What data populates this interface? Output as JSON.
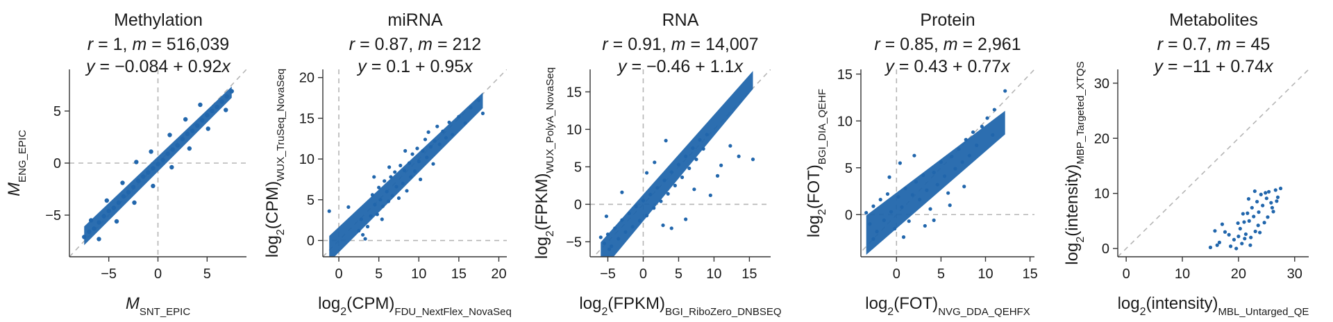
{
  "chart_data": [
    {
      "type": "scatter",
      "title": "Methylation",
      "stats": {
        "r_label": "r",
        "r_value": "1",
        "m_label": "m",
        "m_value": "516,039"
      },
      "fit_text": {
        "lhs": "y",
        "eq": " = −0.084 + 0.92",
        "var": "x"
      },
      "fit": {
        "intercept": -0.084,
        "slope": 0.92
      },
      "xlabel": {
        "main": "M",
        "sub": "SNT_EPIC"
      },
      "ylabel": {
        "main": "M",
        "sub": "ENG_EPIC"
      },
      "xlim": [
        -9,
        9
      ],
      "ylim": [
        -9,
        9
      ],
      "xticks": [
        -5,
        0,
        5
      ],
      "yticks": [
        -5,
        0,
        5
      ],
      "tick_labels_x": [
        "−5",
        "0",
        "5"
      ],
      "tick_labels_y": [
        "−5",
        "0",
        "5"
      ],
      "identity_line": true,
      "zero_lines": true,
      "color": "#2166ac",
      "points": [
        [
          -7.5,
          -7.1
        ],
        [
          -7.0,
          -6.6
        ],
        [
          -6.5,
          -6.3
        ],
        [
          -6.0,
          -5.7
        ],
        [
          -5.5,
          -5.1
        ],
        [
          -5.0,
          -4.6
        ],
        [
          -4.5,
          -4.3
        ],
        [
          -4.0,
          -3.8
        ],
        [
          -3.5,
          -3.2
        ],
        [
          -3.0,
          -2.8
        ],
        [
          -2.5,
          -2.3
        ],
        [
          -2.0,
          -1.7
        ],
        [
          -1.5,
          -1.3
        ],
        [
          -1.0,
          -0.9
        ],
        [
          -0.5,
          -0.5
        ],
        [
          0.0,
          -0.1
        ],
        [
          0.5,
          0.3
        ],
        [
          1.0,
          0.9
        ],
        [
          1.5,
          1.3
        ],
        [
          2.0,
          1.7
        ],
        [
          2.5,
          2.3
        ],
        [
          3.0,
          2.8
        ],
        [
          3.5,
          3.1
        ],
        [
          4.0,
          3.6
        ],
        [
          4.5,
          4.1
        ],
        [
          5.0,
          4.6
        ],
        [
          5.5,
          5.0
        ],
        [
          6.0,
          5.4
        ],
        [
          6.5,
          5.9
        ],
        [
          7.0,
          6.4
        ],
        [
          7.5,
          6.9
        ],
        [
          -6.8,
          -5.5
        ],
        [
          -5.2,
          -3.6
        ],
        [
          -3.6,
          -1.9
        ],
        [
          -2.2,
          0.1
        ],
        [
          -0.7,
          1.1
        ],
        [
          1.2,
          2.7
        ],
        [
          2.8,
          4.2
        ],
        [
          4.3,
          5.6
        ],
        [
          -6.0,
          -7.3
        ],
        [
          -4.2,
          -5.6
        ],
        [
          -2.4,
          -3.8
        ],
        [
          -0.5,
          -2.2
        ],
        [
          1.4,
          -0.4
        ],
        [
          3.2,
          1.4
        ],
        [
          5.1,
          3.3
        ],
        [
          6.9,
          5.1
        ]
      ]
    },
    {
      "type": "scatter",
      "title": "miRNA",
      "stats": {
        "r_label": "r",
        "r_value": "0.87",
        "m_label": "m",
        "m_value": "212"
      },
      "fit_text": {
        "lhs": "y",
        "eq": " = 0.1 + 0.95",
        "var": "x"
      },
      "fit": {
        "intercept": 0.1,
        "slope": 0.95
      },
      "xlabel": {
        "main": "log2(CPM)",
        "sub": "FDU_NextFlex_NovaSeq"
      },
      "ylabel": {
        "main": "log2(CPM)",
        "sub": "WUX_TruSeq_NovaSeq"
      },
      "xlim": [
        -2,
        21
      ],
      "ylim": [
        -2,
        21
      ],
      "xticks": [
        0,
        5,
        10,
        15,
        20
      ],
      "yticks": [
        0,
        5,
        10,
        15,
        20
      ],
      "tick_labels_x": [
        "0",
        "5",
        "10",
        "15",
        "20"
      ],
      "tick_labels_y": [
        "0",
        "5",
        "10",
        "15",
        "20"
      ],
      "identity_line": true,
      "zero_lines": true,
      "color": "#2166ac",
      "points": [
        [
          -1.2,
          3.6
        ],
        [
          1.2,
          4.1
        ],
        [
          2.5,
          1.2
        ],
        [
          2.8,
          2.6
        ],
        [
          3.0,
          0.7
        ],
        [
          3.3,
          0.2
        ],
        [
          3.6,
          1.7
        ],
        [
          4.0,
          3.0
        ],
        [
          4.2,
          5.6
        ],
        [
          4.5,
          4.4
        ],
        [
          4.8,
          3.2
        ],
        [
          5.0,
          6.5
        ],
        [
          5.2,
          5.0
        ],
        [
          5.5,
          4.2
        ],
        [
          5.7,
          7.3
        ],
        [
          6.0,
          6.0
        ],
        [
          6.2,
          4.8
        ],
        [
          6.5,
          7.8
        ],
        [
          6.7,
          5.5
        ],
        [
          7.0,
          8.4
        ],
        [
          7.2,
          6.6
        ],
        [
          7.5,
          5.2
        ],
        [
          7.7,
          9.2
        ],
        [
          8.0,
          7.0
        ],
        [
          8.2,
          8.6
        ],
        [
          8.5,
          6.1
        ],
        [
          8.8,
          9.5
        ],
        [
          9.0,
          7.8
        ],
        [
          9.2,
          10.6
        ],
        [
          9.5,
          8.5
        ],
        [
          9.8,
          11.3
        ],
        [
          10.0,
          9.7
        ],
        [
          10.2,
          7.5
        ],
        [
          10.5,
          11.0
        ],
        [
          10.8,
          12.4
        ],
        [
          11.0,
          10.2
        ],
        [
          11.2,
          13.3
        ],
        [
          11.5,
          11.5
        ],
        [
          11.8,
          9.4
        ],
        [
          12.0,
          12.2
        ],
        [
          12.3,
          14.0
        ],
        [
          12.6,
          11.8
        ],
        [
          13.0,
          13.4
        ],
        [
          13.4,
          12.6
        ],
        [
          13.8,
          14.5
        ],
        [
          14.2,
          13.0
        ],
        [
          15.0,
          15.2
        ],
        [
          15.8,
          14.4
        ],
        [
          16.5,
          16.3
        ],
        [
          17.5,
          17.2
        ],
        [
          18.0,
          15.6
        ],
        [
          6.3,
          9.0
        ],
        [
          8.3,
          11.0
        ],
        [
          5.4,
          2.6
        ],
        [
          4.4,
          7.8
        ]
      ]
    },
    {
      "type": "scatter",
      "title": "RNA",
      "stats": {
        "r_label": "r",
        "r_value": "0.91",
        "m_label": "m",
        "m_value": "14,007"
      },
      "fit_text": {
        "lhs": "y",
        "eq": " = −0.46 + 1.1",
        "var": "x"
      },
      "fit": {
        "intercept": -0.46,
        "slope": 1.1
      },
      "xlabel": {
        "main": "log2(FPKM)",
        "sub": "BGI_RiboZero_DNBSEQ"
      },
      "ylabel": {
        "main": "log2(FPKM)",
        "sub": "WUX_PolyA_NovaSeq"
      },
      "xlim": [
        -7.5,
        18
      ],
      "ylim": [
        -7,
        18
      ],
      "xticks": [
        -5,
        0,
        5,
        10,
        15
      ],
      "yticks": [
        -5,
        0,
        5,
        10,
        15
      ],
      "tick_labels_x": [
        "−5",
        "0",
        "5",
        "10",
        "15"
      ],
      "tick_labels_y": [
        "−5",
        "0",
        "5",
        "10",
        "15"
      ],
      "identity_line": true,
      "zero_lines": true,
      "color": "#2166ac",
      "points": [
        [
          -5.5,
          -5.2
        ],
        [
          -5.0,
          -4.0
        ],
        [
          -4.5,
          -5.6
        ],
        [
          -4.0,
          -3.2
        ],
        [
          -3.5,
          -4.6
        ],
        [
          -3.0,
          -2.1
        ],
        [
          -2.5,
          -3.7
        ],
        [
          -2.0,
          -1.2
        ],
        [
          -1.5,
          -3.0
        ],
        [
          -1.0,
          -0.3
        ],
        [
          -0.5,
          -2.2
        ],
        [
          0.0,
          0.5
        ],
        [
          0.5,
          -1.5
        ],
        [
          1.0,
          1.3
        ],
        [
          1.5,
          -0.5
        ],
        [
          2.0,
          2.2
        ],
        [
          2.5,
          0.4
        ],
        [
          3.0,
          3.2
        ],
        [
          3.5,
          1.4
        ],
        [
          4.0,
          4.3
        ],
        [
          4.5,
          2.5
        ],
        [
          5.0,
          5.3
        ],
        [
          5.5,
          3.6
        ],
        [
          6.0,
          6.4
        ],
        [
          6.5,
          4.8
        ],
        [
          7.0,
          7.5
        ],
        [
          7.5,
          6.0
        ],
        [
          8.0,
          8.6
        ],
        [
          8.5,
          7.4
        ],
        [
          9.0,
          9.3
        ],
        [
          -6.0,
          -4.4
        ],
        [
          -4.8,
          -6.0
        ],
        [
          2.8,
          -2.8
        ],
        [
          4.0,
          -3.2
        ],
        [
          6.0,
          -2.0
        ],
        [
          9.5,
          1.2
        ],
        [
          10.5,
          3.8
        ],
        [
          13.5,
          6.4
        ],
        [
          15.5,
          6.0
        ],
        [
          11.0,
          5.2
        ],
        [
          -5.2,
          -1.6
        ],
        [
          -3.0,
          1.6
        ],
        [
          0.5,
          4.2
        ],
        [
          3.2,
          8.5
        ],
        [
          1.6,
          5.6
        ],
        [
          7.2,
          2.0
        ],
        [
          12.3,
          7.8
        ]
      ]
    },
    {
      "type": "scatter",
      "title": "Protein",
      "stats": {
        "r_label": "r",
        "r_value": "0.85",
        "m_label": "m",
        "m_value": "2,961"
      },
      "fit_text": {
        "lhs": "y",
        "eq": " = 0.43 + 0.77",
        "var": "x"
      },
      "fit": {
        "intercept": 0.43,
        "slope": 0.77
      },
      "xlabel": {
        "main": "log2(FOT)",
        "sub": "NVG_DDA_QEHFX"
      },
      "ylabel": {
        "main": "log2(FOT)",
        "sub": "BGI_DIA_QEHF"
      },
      "xlim": [
        -4,
        15.5
      ],
      "ylim": [
        -4.5,
        15.5
      ],
      "xticks": [
        0,
        5,
        10,
        15
      ],
      "yticks": [
        0,
        5,
        10,
        15
      ],
      "tick_labels_x": [
        "0",
        "5",
        "10",
        "15"
      ],
      "tick_labels_y": [
        "0",
        "5",
        "10",
        "15"
      ],
      "identity_line": true,
      "zero_lines": true,
      "color": "#2166ac",
      "points": [
        [
          -3.0,
          -1.0
        ],
        [
          -2.6,
          0.9
        ],
        [
          -2.2,
          -1.8
        ],
        [
          -1.8,
          1.6
        ],
        [
          -1.4,
          -0.6
        ],
        [
          -1.0,
          2.2
        ],
        [
          -0.6,
          0.3
        ],
        [
          -0.2,
          -1.5
        ],
        [
          0.2,
          1.9
        ],
        [
          0.6,
          0.8
        ],
        [
          1.0,
          2.8
        ],
        [
          1.4,
          -0.7
        ],
        [
          1.8,
          2.1
        ],
        [
          2.2,
          3.5
        ],
        [
          2.6,
          1.6
        ],
        [
          3.0,
          4.2
        ],
        [
          3.4,
          2.6
        ],
        [
          3.8,
          0.6
        ],
        [
          4.2,
          4.5
        ],
        [
          4.6,
          3.2
        ],
        [
          5.0,
          5.6
        ],
        [
          5.4,
          4.1
        ],
        [
          5.8,
          2.3
        ],
        [
          6.2,
          6.2
        ],
        [
          6.6,
          4.9
        ],
        [
          7.0,
          7.0
        ],
        [
          7.4,
          5.6
        ],
        [
          7.8,
          8.0
        ],
        [
          8.2,
          6.3
        ],
        [
          8.6,
          8.8
        ],
        [
          9.0,
          7.4
        ],
        [
          9.6,
          9.4
        ],
        [
          10.2,
          10.3
        ],
        [
          11.0,
          11.2
        ],
        [
          12.2,
          13.2
        ],
        [
          10.8,
          8.5
        ],
        [
          -2.6,
          -2.6
        ],
        [
          -0.8,
          4.0
        ],
        [
          0.4,
          5.5
        ],
        [
          2.0,
          6.3
        ],
        [
          4.2,
          -0.6
        ],
        [
          6.0,
          1.0
        ],
        [
          7.6,
          3.0
        ],
        [
          -3.4,
          0.2
        ],
        [
          0.8,
          -2.4
        ],
        [
          3.2,
          -1.2
        ]
      ]
    },
    {
      "type": "scatter",
      "title": "Metabolites",
      "stats": {
        "r_label": "r",
        "r_value": "0.7",
        "m_label": "m",
        "m_value": "45"
      },
      "fit_text": {
        "lhs": "y",
        "eq": " = −11 + 0.74",
        "var": "x"
      },
      "fit": {
        "intercept": -11,
        "slope": 0.74
      },
      "xlabel": {
        "main": "log2(intensity)",
        "sub": "MBL_Untarged_QE"
      },
      "ylabel": {
        "main": "log2(intensity)",
        "sub": "MBP_Targeted_XTQS"
      },
      "xlim": [
        -1.5,
        32.5
      ],
      "ylim": [
        -1.5,
        32.5
      ],
      "xticks": [
        0,
        10,
        20,
        30
      ],
      "yticks": [
        0,
        10,
        20,
        30
      ],
      "tick_labels_x": [
        "0",
        "10",
        "20",
        "30"
      ],
      "tick_labels_y": [
        "0",
        "10",
        "20",
        "30"
      ],
      "identity_line": true,
      "zero_lines": false,
      "color": "#2166ac",
      "points": [
        [
          15.0,
          0.2
        ],
        [
          15.8,
          3.2
        ],
        [
          16.6,
          1.1
        ],
        [
          17.6,
          3.0
        ],
        [
          18.6,
          0.4
        ],
        [
          19.2,
          1.6
        ],
        [
          19.6,
          0.0
        ],
        [
          20.0,
          2.2
        ],
        [
          20.3,
          3.6
        ],
        [
          20.6,
          0.9
        ],
        [
          21.0,
          4.8
        ],
        [
          21.3,
          2.6
        ],
        [
          21.6,
          6.4
        ],
        [
          21.9,
          5.0
        ],
        [
          22.2,
          2.0
        ],
        [
          22.4,
          7.4
        ],
        [
          22.7,
          5.8
        ],
        [
          23.0,
          3.1
        ],
        [
          23.3,
          8.5
        ],
        [
          23.6,
          6.6
        ],
        [
          24.0,
          9.8
        ],
        [
          24.3,
          7.8
        ],
        [
          24.6,
          4.7
        ],
        [
          25.0,
          9.1
        ],
        [
          25.4,
          10.3
        ],
        [
          25.8,
          8.3
        ],
        [
          26.2,
          6.7
        ],
        [
          26.6,
          10.6
        ],
        [
          27.0,
          9.3
        ],
        [
          27.5,
          10.9
        ],
        [
          22.1,
          0.6
        ],
        [
          23.8,
          2.9
        ],
        [
          25.2,
          5.7
        ],
        [
          26.0,
          7.4
        ],
        [
          21.8,
          9.0
        ],
        [
          24.8,
          10.1
        ],
        [
          20.8,
          6.3
        ],
        [
          18.3,
          2.5
        ],
        [
          19.9,
          4.6
        ],
        [
          22.9,
          10.4
        ],
        [
          26.8,
          8.6
        ],
        [
          23.5,
          4.2
        ],
        [
          21.1,
          1.8
        ],
        [
          16.2,
          0.6
        ],
        [
          17.1,
          4.4
        ]
      ]
    }
  ]
}
